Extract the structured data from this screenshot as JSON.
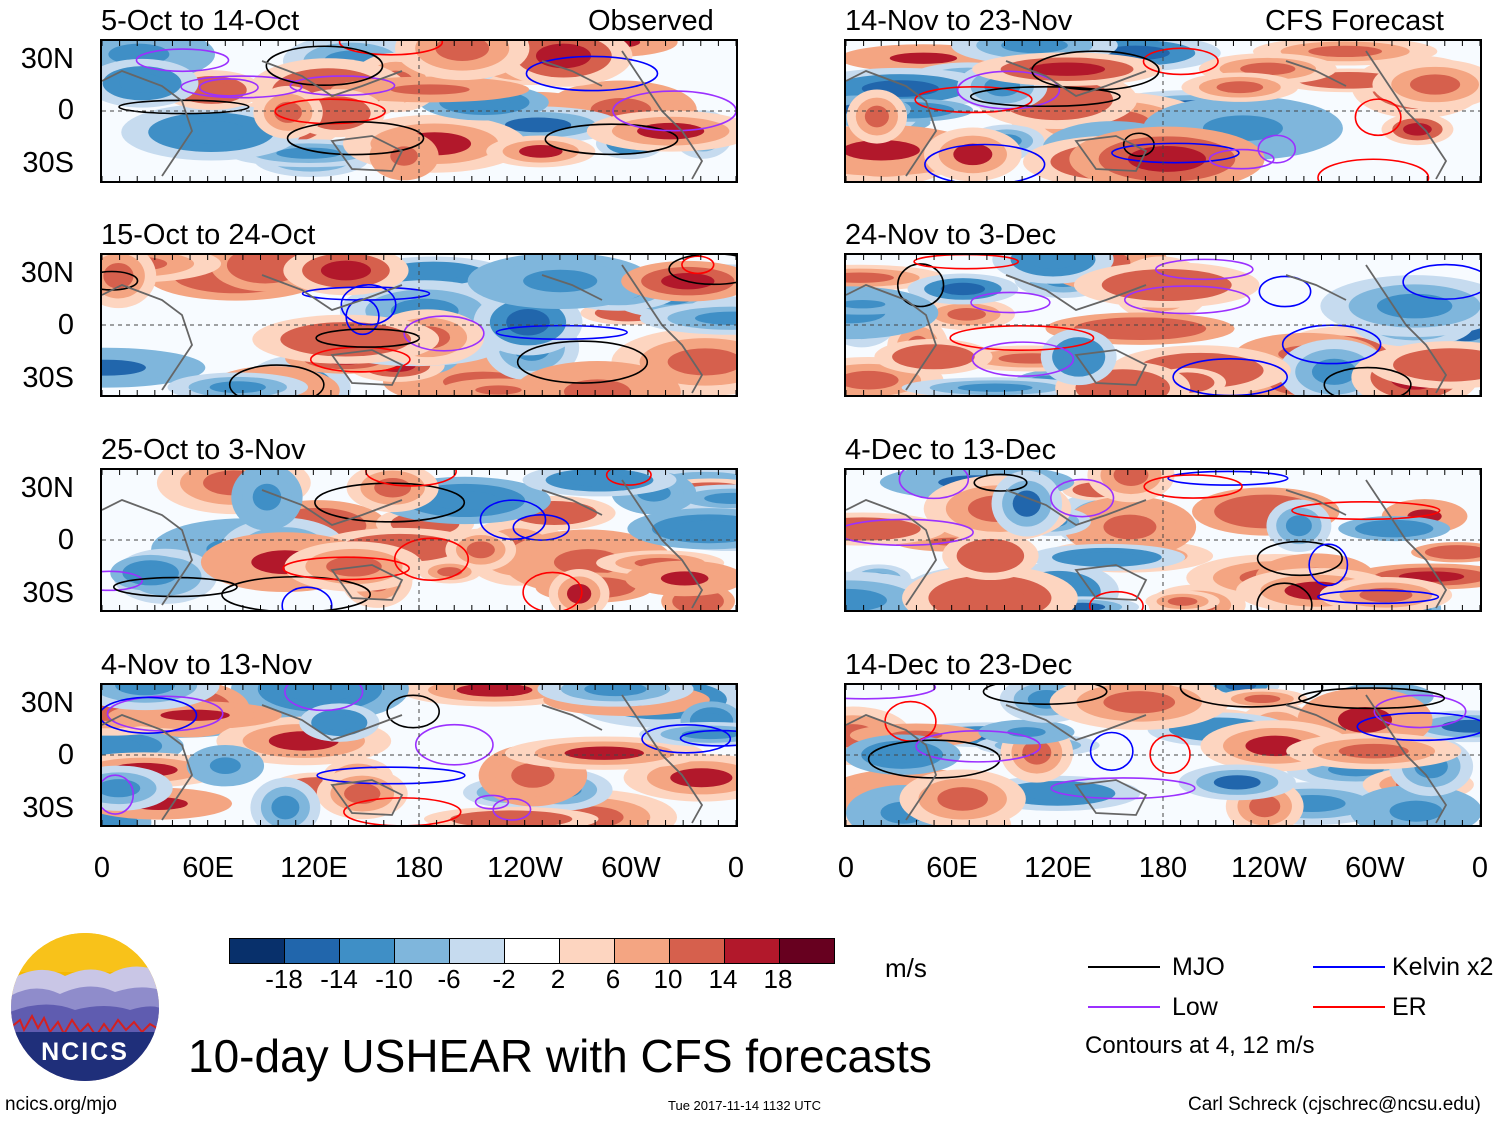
{
  "title": "10-day USHEAR with CFS forecasts",
  "website": "ncics.org/mjo",
  "timestamp": "Tue 2017-11-14 1132 UTC",
  "author": "Carl Schreck (cjschrec@ncsu.edu)",
  "logo_text": "NCICS",
  "columns": {
    "observed_label": "Observed",
    "forecast_label": "CFS Forecast"
  },
  "lat_ticks": [
    "30N",
    "0",
    "30S"
  ],
  "lon_ticks": [
    "0",
    "60E",
    "120E",
    "180",
    "120W",
    "60W",
    "0"
  ],
  "colorbar": {
    "units": "m/s",
    "tick_labels": [
      "-18",
      "-14",
      "-10",
      "-6",
      "-2",
      "2",
      "6",
      "10",
      "14",
      "18"
    ],
    "colors": [
      "#08306b",
      "#2166ac",
      "#3f8fc6",
      "#7fb6dc",
      "#c6dbef",
      "#ffffff",
      "#fdd5c0",
      "#f4a582",
      "#d6604d",
      "#b2182b",
      "#67001f"
    ]
  },
  "legend": {
    "items": [
      {
        "label": "MJO",
        "color": "#000000"
      },
      {
        "label": "Kelvin x2",
        "color": "#0000ff"
      },
      {
        "label": "Low",
        "color": "#9b30ff"
      },
      {
        "label": "ER",
        "color": "#ff0000"
      }
    ],
    "contour_note": "Contours at 4, 12 m/s"
  },
  "chart_data": {
    "type": "heatmap",
    "variable": "USHEAR anomaly (m/s)",
    "x_axis": {
      "range": [
        0,
        360
      ],
      "ticks": [
        "0",
        "60E",
        "120E",
        "180",
        "120W",
        "60W",
        "0"
      ]
    },
    "y_axis": {
      "range": [
        -40,
        40
      ],
      "ticks": [
        "30N",
        "0",
        "30S"
      ]
    },
    "observed_panels": [
      {
        "period": "5-Oct to 14-Oct"
      },
      {
        "period": "15-Oct to 24-Oct"
      },
      {
        "period": "25-Oct to 3-Nov"
      },
      {
        "period": "4-Nov to 13-Nov"
      }
    ],
    "forecast_panels": [
      {
        "period": "14-Nov to 23-Nov"
      },
      {
        "period": "24-Nov to 3-Dec"
      },
      {
        "period": "4-Dec to 13-Dec"
      },
      {
        "period": "14-Dec to 23-Dec"
      }
    ]
  }
}
